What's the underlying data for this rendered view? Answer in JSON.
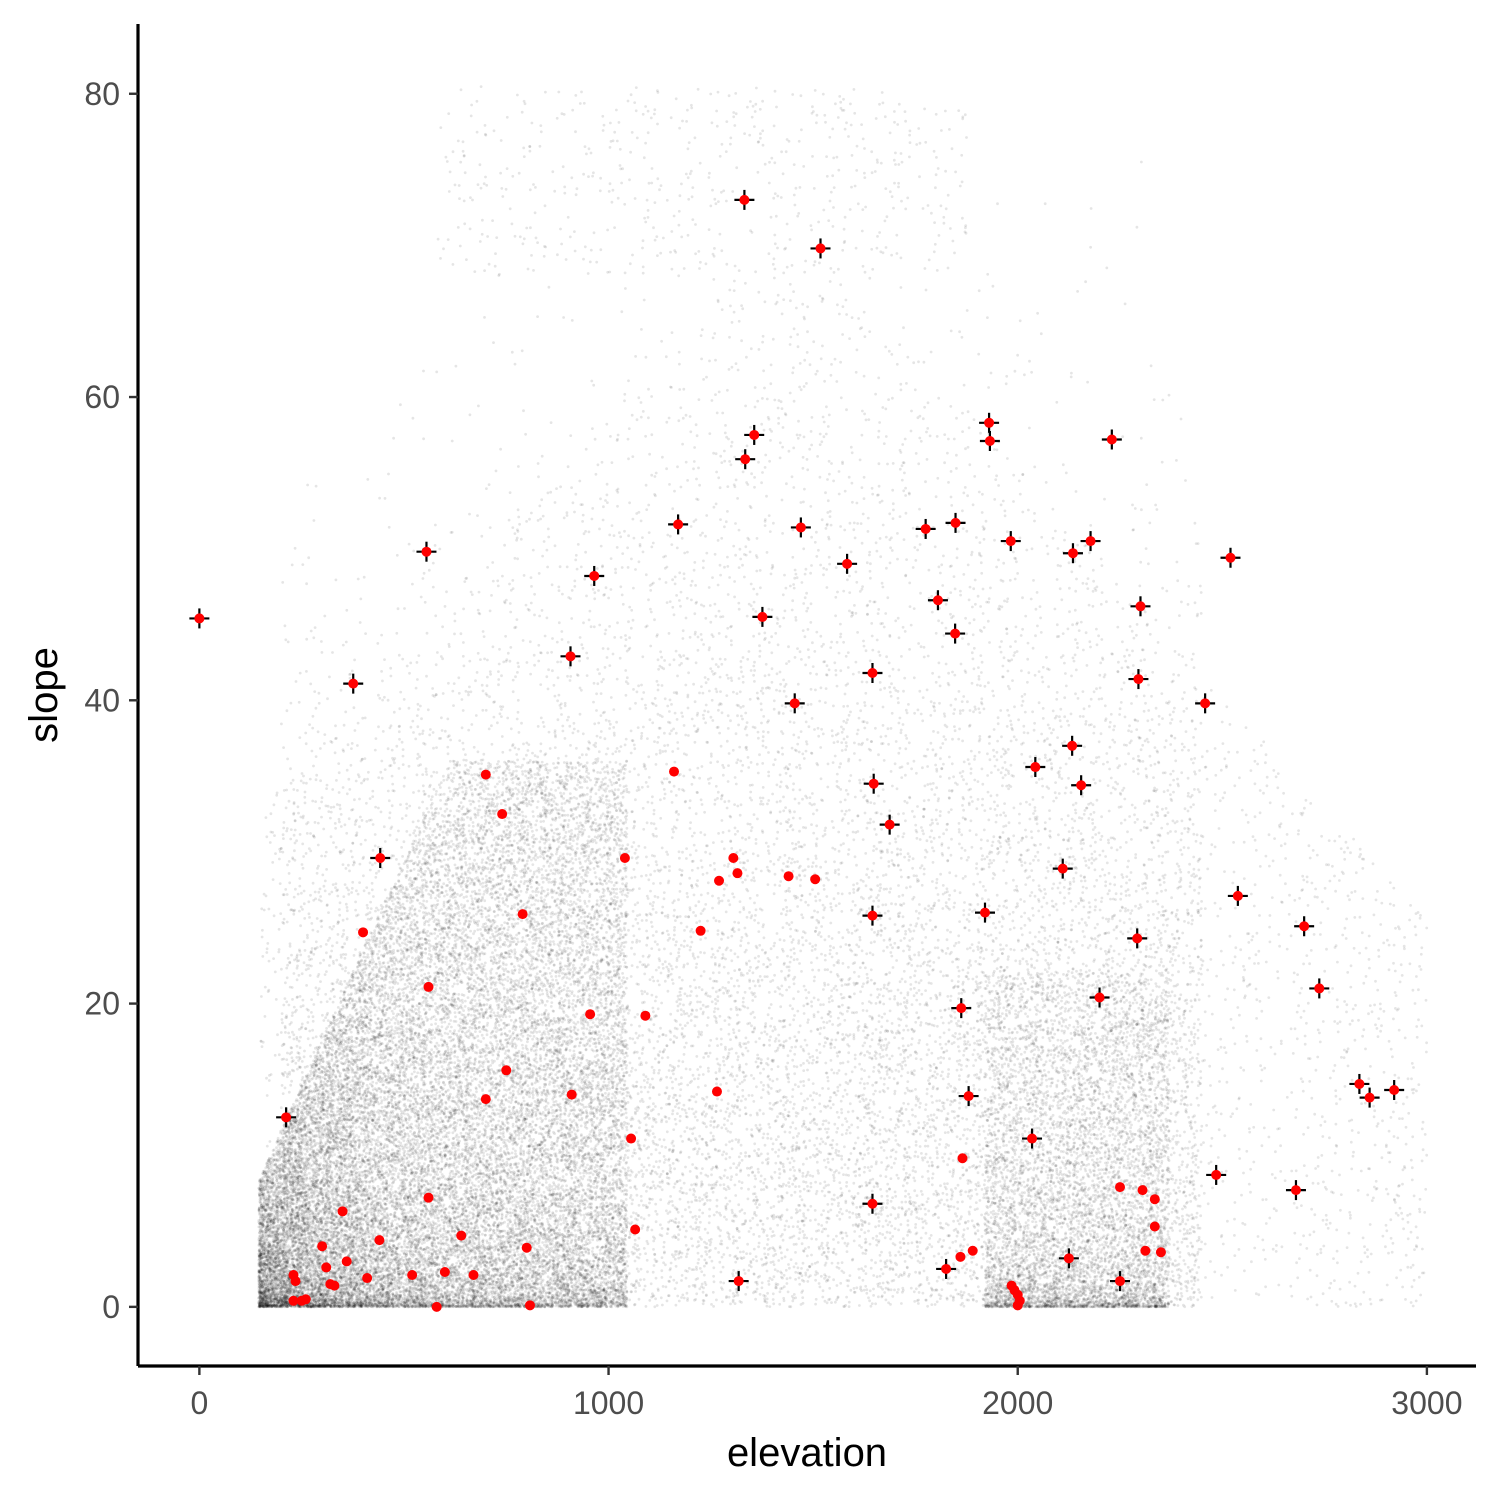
{
  "chart_data": {
    "type": "scatter",
    "title": "",
    "xlabel": "elevation",
    "ylabel": "slope",
    "xlim": [
      -150,
      3120
    ],
    "ylim": [
      -3.9,
      84.6
    ],
    "x_ticks": [
      0,
      1000,
      2000,
      3000
    ],
    "y_ticks": [
      0,
      20,
      40,
      60,
      80
    ],
    "x_tick_labels": [
      "0",
      "1000",
      "2000",
      "3000"
    ],
    "y_tick_labels": [
      "0",
      "20",
      "40",
      "60",
      "80"
    ],
    "grid": false,
    "legend": "none",
    "colors": {
      "background_points": "#000000",
      "highlight": "#ff0000",
      "crosshair": "#000000"
    },
    "background_cloud": {
      "description_note": "",
      "x_range": [
        140,
        3000
      ],
      "y_range": [
        0,
        80
      ],
      "point_alpha": 0.1
    },
    "series": [
      {
        "marker": "red-point-with-cross",
        "points": [
          [
            0,
            45.4
          ],
          [
            212,
            12.5
          ],
          [
            376,
            41.1
          ],
          [
            442,
            29.6
          ],
          [
            555,
            49.8
          ],
          [
            965,
            48.2
          ],
          [
            907,
            42.9
          ],
          [
            1170,
            51.6
          ],
          [
            1332,
            73.0
          ],
          [
            1518,
            69.8
          ],
          [
            1334,
            55.9
          ],
          [
            1356,
            57.5
          ],
          [
            1470,
            51.4
          ],
          [
            1583,
            49.0
          ],
          [
            1376,
            45.5
          ],
          [
            1455,
            39.8
          ],
          [
            1645,
            41.8
          ],
          [
            1648,
            34.5
          ],
          [
            1687,
            31.8
          ],
          [
            1645,
            25.8
          ],
          [
            1645,
            6.8
          ],
          [
            1775,
            51.3
          ],
          [
            1848,
            51.7
          ],
          [
            1805,
            46.6
          ],
          [
            1847,
            44.4
          ],
          [
            1930,
            58.3
          ],
          [
            1932,
            57.1
          ],
          [
            1983,
            50.5
          ],
          [
            2135,
            49.7
          ],
          [
            2178,
            50.5
          ],
          [
            2230,
            57.2
          ],
          [
            2300,
            46.2
          ],
          [
            2295,
            41.4
          ],
          [
            2133,
            37.0
          ],
          [
            2155,
            34.4
          ],
          [
            2043,
            35.6
          ],
          [
            2110,
            28.9
          ],
          [
            1920,
            26.0
          ],
          [
            2292,
            24.3
          ],
          [
            2200,
            20.4
          ],
          [
            1862,
            19.7
          ],
          [
            1880,
            13.9
          ],
          [
            2520,
            49.4
          ],
          [
            2458,
            39.8
          ],
          [
            2538,
            27.1
          ],
          [
            2700,
            25.1
          ],
          [
            2737,
            21.0
          ],
          [
            2835,
            14.7
          ],
          [
            2860,
            13.8
          ],
          [
            2920,
            14.3
          ],
          [
            2485,
            8.7
          ],
          [
            2680,
            7.7
          ],
          [
            2035,
            11.1
          ],
          [
            2125,
            3.2
          ],
          [
            2250,
            1.7
          ],
          [
            1825,
            2.5
          ],
          [
            1318,
            1.7
          ]
        ]
      },
      {
        "marker": "red-point",
        "points": [
          [
            700,
            35.1
          ],
          [
            740,
            32.5
          ],
          [
            790,
            25.9
          ],
          [
            400,
            24.7
          ],
          [
            560,
            21.1
          ],
          [
            955,
            19.3
          ],
          [
            1090,
            19.2
          ],
          [
            1160,
            35.3
          ],
          [
            1040,
            29.6
          ],
          [
            1305,
            29.6
          ],
          [
            1270,
            28.1
          ],
          [
            1315,
            28.6
          ],
          [
            1440,
            28.4
          ],
          [
            1505,
            28.2
          ],
          [
            1225,
            24.8
          ],
          [
            910,
            14.0
          ],
          [
            750,
            15.6
          ],
          [
            700,
            13.7
          ],
          [
            1265,
            14.2
          ],
          [
            1055,
            11.1
          ],
          [
            1065,
            5.1
          ],
          [
            800,
            3.9
          ],
          [
            808,
            0.1
          ],
          [
            560,
            7.2
          ],
          [
            350,
            6.3
          ],
          [
            300,
            4.0
          ],
          [
            310,
            2.6
          ],
          [
            320,
            1.5
          ],
          [
            330,
            1.4
          ],
          [
            360,
            3.0
          ],
          [
            410,
            1.9
          ],
          [
            440,
            4.4
          ],
          [
            520,
            2.1
          ],
          [
            580,
            0.0
          ],
          [
            600,
            2.3
          ],
          [
            640,
            4.7
          ],
          [
            670,
            2.1
          ],
          [
            230,
            2.1
          ],
          [
            235,
            1.7
          ],
          [
            230,
            0.4
          ],
          [
            250,
            0.4
          ],
          [
            260,
            0.5
          ],
          [
            1865,
            9.8
          ],
          [
            1860,
            3.3
          ],
          [
            1890,
            3.7
          ],
          [
            1985,
            1.4
          ],
          [
            1992,
            1.1
          ],
          [
            2000,
            0.8
          ],
          [
            2005,
            0.4
          ],
          [
            2000,
            0.1
          ],
          [
            2250,
            7.9
          ],
          [
            2305,
            7.7
          ],
          [
            2335,
            7.1
          ],
          [
            2335,
            5.3
          ],
          [
            2312,
            3.7
          ],
          [
            2350,
            3.6
          ]
        ]
      }
    ]
  }
}
